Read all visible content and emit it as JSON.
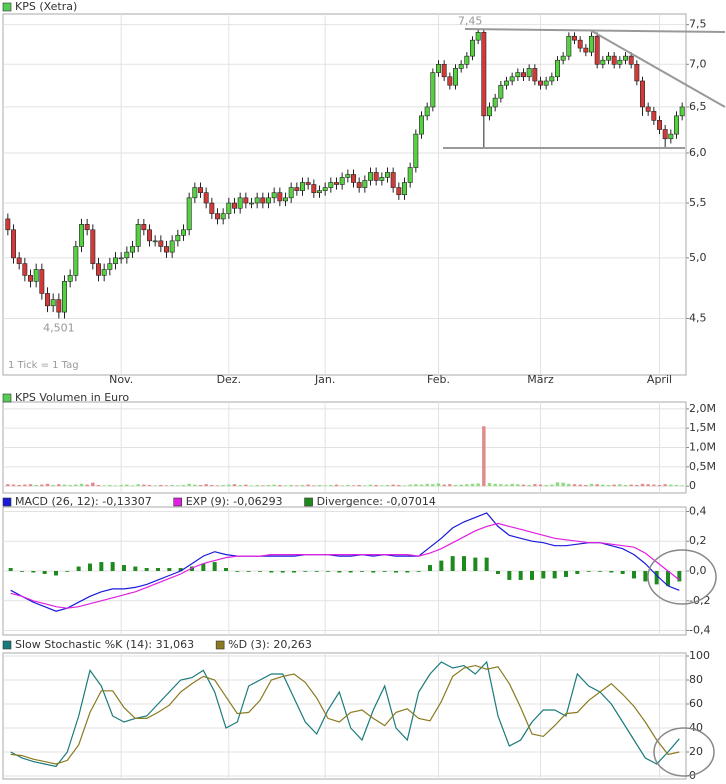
{
  "chart_data": [
    {
      "type": "candlestick",
      "title": "KPS (Xetra)",
      "log": true,
      "grid": true,
      "up_color": "#55d040",
      "down_color": "#d23a3a",
      "ylim": [
        4.1,
        7.6
      ],
      "yticks": [
        {
          "value": 7.5,
          "label": "7,5"
        },
        {
          "value": 7.0,
          "label": "7,0"
        },
        {
          "value": 6.5,
          "label": "6,5"
        },
        {
          "value": 6.0,
          "label": "6,0"
        },
        {
          "value": 5.5,
          "label": "5,5"
        },
        {
          "value": 5.0,
          "label": "5,0"
        },
        {
          "value": 4.5,
          "label": "4,5"
        }
      ],
      "xticks": [
        {
          "value": 20,
          "label": "Nov."
        },
        {
          "value": 39,
          "label": "Dez."
        },
        {
          "value": 56,
          "label": "Jan."
        },
        {
          "value": 76,
          "label": "Feb."
        },
        {
          "value": 94,
          "label": "März"
        },
        {
          "value": 115,
          "label": "April"
        }
      ],
      "annotations": {
        "high": "7,45",
        "low": "4,501",
        "note": "1 Tick = 1 Tag"
      },
      "open": [
        5.35,
        5.25,
        5.0,
        4.95,
        4.85,
        4.8,
        4.9,
        4.7,
        4.6,
        4.65,
        4.55,
        4.8,
        4.85,
        5.1,
        5.3,
        5.25,
        4.95,
        4.85,
        4.9,
        4.95,
        5.0,
        5.0,
        5.05,
        5.1,
        5.3,
        5.25,
        5.15,
        5.15,
        5.1,
        5.05,
        5.15,
        5.2,
        5.25,
        5.55,
        5.65,
        5.6,
        5.5,
        5.4,
        5.35,
        5.4,
        5.5,
        5.45,
        5.55,
        5.5,
        5.5,
        5.55,
        5.5,
        5.55,
        5.6,
        5.52,
        5.55,
        5.65,
        5.62,
        5.7,
        5.68,
        5.6,
        5.62,
        5.65,
        5.7,
        5.68,
        5.75,
        5.78,
        5.7,
        5.65,
        5.72,
        5.8,
        5.72,
        5.75,
        5.8,
        5.65,
        5.58,
        5.7,
        5.85,
        6.2,
        6.4,
        6.5,
        6.9,
        7.0,
        6.85,
        6.75,
        6.95,
        7.0,
        7.1,
        7.3,
        7.4,
        6.4,
        6.5,
        6.6,
        6.75,
        6.8,
        6.85,
        6.9,
        6.85,
        6.95,
        6.8,
        6.75,
        6.8,
        6.85,
        7.05,
        7.1,
        7.35,
        7.3,
        7.2,
        7.15,
        7.35,
        7.0,
        7.05,
        7.1,
        7.0,
        7.05,
        7.1,
        7.0,
        6.8,
        6.5,
        6.45,
        6.35,
        6.25,
        6.15,
        6.2,
        6.4
      ],
      "high": [
        5.4,
        5.3,
        5.05,
        5.0,
        4.9,
        4.95,
        4.95,
        4.75,
        4.7,
        4.7,
        4.85,
        4.9,
        5.15,
        5.35,
        5.35,
        5.3,
        5.0,
        4.95,
        5.0,
        5.05,
        5.05,
        5.1,
        5.15,
        5.35,
        5.35,
        5.3,
        5.2,
        5.2,
        5.15,
        5.2,
        5.25,
        5.3,
        5.6,
        5.7,
        5.7,
        5.65,
        5.55,
        5.45,
        5.45,
        5.55,
        5.55,
        5.6,
        5.6,
        5.55,
        5.6,
        5.6,
        5.6,
        5.65,
        5.65,
        5.6,
        5.7,
        5.7,
        5.75,
        5.75,
        5.73,
        5.67,
        5.7,
        5.75,
        5.75,
        5.8,
        5.83,
        5.83,
        5.75,
        5.77,
        5.85,
        5.85,
        5.8,
        5.85,
        5.85,
        5.7,
        5.75,
        5.9,
        6.25,
        6.45,
        6.55,
        6.95,
        7.05,
        7.05,
        6.9,
        7.0,
        7.05,
        7.15,
        7.35,
        7.45,
        7.45,
        6.55,
        6.65,
        6.8,
        6.85,
        6.9,
        6.95,
        6.95,
        7.0,
        7.0,
        6.85,
        6.85,
        6.9,
        7.1,
        7.15,
        7.4,
        7.4,
        7.35,
        7.25,
        7.4,
        7.4,
        7.1,
        7.15,
        7.15,
        7.1,
        7.15,
        7.15,
        7.05,
        6.85,
        6.55,
        6.5,
        6.4,
        6.3,
        6.25,
        6.45,
        6.55
      ],
      "low": [
        5.2,
        4.95,
        4.9,
        4.8,
        4.75,
        4.75,
        4.65,
        4.55,
        4.55,
        4.5,
        4.5,
        4.75,
        4.8,
        5.05,
        5.2,
        4.9,
        4.8,
        4.8,
        4.85,
        4.9,
        4.95,
        4.95,
        5.0,
        5.05,
        5.2,
        5.1,
        5.1,
        5.05,
        5.0,
        5.0,
        5.1,
        5.15,
        5.2,
        5.5,
        5.55,
        5.45,
        5.35,
        5.3,
        5.3,
        5.35,
        5.4,
        5.4,
        5.45,
        5.45,
        5.45,
        5.45,
        5.45,
        5.5,
        5.47,
        5.47,
        5.5,
        5.57,
        5.57,
        5.63,
        5.55,
        5.55,
        5.57,
        5.6,
        5.63,
        5.63,
        5.7,
        5.65,
        5.6,
        5.6,
        5.67,
        5.67,
        5.67,
        5.7,
        5.6,
        5.53,
        5.53,
        5.65,
        5.8,
        6.15,
        6.35,
        6.45,
        6.85,
        6.8,
        6.7,
        6.7,
        6.9,
        6.95,
        7.05,
        7.25,
        6.05,
        6.35,
        6.45,
        6.55,
        6.7,
        6.75,
        6.8,
        6.8,
        6.8,
        6.75,
        6.7,
        6.7,
        6.75,
        6.8,
        7.0,
        7.05,
        7.25,
        7.15,
        7.1,
        7.1,
        6.95,
        6.95,
        7.0,
        6.95,
        6.95,
        7.0,
        6.95,
        6.75,
        6.4,
        6.4,
        6.3,
        6.2,
        6.05,
        6.1,
        6.15,
        6.35
      ],
      "close": [
        5.25,
        5.0,
        4.95,
        4.85,
        4.8,
        4.9,
        4.7,
        4.6,
        4.65,
        4.55,
        4.8,
        4.85,
        5.1,
        5.3,
        5.25,
        4.95,
        4.85,
        4.9,
        4.95,
        5.0,
        5.0,
        5.05,
        5.1,
        5.3,
        5.25,
        5.15,
        5.15,
        5.1,
        5.05,
        5.15,
        5.2,
        5.25,
        5.55,
        5.65,
        5.6,
        5.5,
        5.4,
        5.35,
        5.4,
        5.5,
        5.45,
        5.55,
        5.5,
        5.5,
        5.55,
        5.5,
        5.55,
        5.6,
        5.52,
        5.55,
        5.65,
        5.62,
        5.7,
        5.68,
        5.6,
        5.62,
        5.65,
        5.7,
        5.68,
        5.75,
        5.78,
        5.7,
        5.65,
        5.72,
        5.8,
        5.72,
        5.75,
        5.8,
        5.65,
        5.58,
        5.7,
        5.85,
        6.2,
        6.4,
        6.5,
        6.9,
        7.0,
        6.85,
        6.75,
        6.95,
        7.0,
        7.1,
        7.3,
        7.4,
        6.4,
        6.5,
        6.6,
        6.75,
        6.8,
        6.85,
        6.9,
        6.85,
        6.95,
        6.8,
        6.75,
        6.8,
        6.85,
        7.05,
        7.1,
        7.35,
        7.3,
        7.2,
        7.15,
        7.35,
        7.0,
        7.05,
        7.1,
        7.0,
        7.05,
        7.1,
        7.0,
        6.8,
        6.5,
        6.45,
        6.35,
        6.25,
        6.15,
        6.2,
        6.4,
        6.5
      ]
    },
    {
      "type": "bar",
      "title": "KPS Volumen in Euro",
      "grid": true,
      "up_color": "#8fdc80",
      "down_color": "#e08a8a",
      "ylim": [
        -0.1,
        2.1
      ],
      "yticks": [
        0,
        {
          "value": 0.5,
          "label": "0,5M"
        },
        {
          "value": 1.0,
          "label": "1,0M"
        },
        {
          "value": 1.5,
          "label": "1,5M"
        },
        {
          "value": 2.0,
          "label": "2,0M"
        }
      ],
      "values": [
        0.05,
        0.04,
        0.03,
        0.04,
        0.05,
        0.03,
        0.04,
        0.06,
        0.03,
        0.05,
        0.04,
        0.03,
        0.04,
        0.06,
        0.04,
        0.09,
        0.03,
        0.02,
        0.03,
        0.02,
        0.03,
        0.04,
        0.02,
        0.05,
        0.04,
        0.03,
        0.02,
        0.03,
        0.02,
        0.03,
        0.02,
        0.03,
        0.06,
        0.04,
        0.03,
        0.05,
        0.03,
        0.02,
        0.03,
        0.04,
        0.05,
        0.03,
        0.04,
        0.02,
        0.03,
        0.02,
        0.03,
        0.04,
        0.03,
        0.02,
        0.03,
        0.02,
        0.03,
        0.04,
        0.02,
        0.03,
        0.02,
        0.03,
        0.04,
        0.02,
        0.03,
        0.02,
        0.03,
        0.02,
        0.04,
        0.03,
        0.02,
        0.03,
        0.04,
        0.03,
        0.02,
        0.04,
        0.05,
        0.04,
        0.06,
        0.05,
        0.07,
        0.04,
        0.05,
        0.03,
        0.04,
        0.05,
        0.06,
        0.07,
        1.55,
        0.08,
        0.06,
        0.05,
        0.04,
        0.06,
        0.05,
        0.04,
        0.03,
        0.05,
        0.04,
        0.03,
        0.04,
        0.1,
        0.09,
        0.06,
        0.05,
        0.04,
        0.03,
        0.06,
        0.05,
        0.04,
        0.03,
        0.04,
        0.05,
        0.03,
        0.04,
        0.03,
        0.06,
        0.05,
        0.04,
        0.03,
        0.05,
        0.04,
        0.03,
        0.02
      ]
    },
    {
      "type": "line",
      "grid": true,
      "ylim": [
        -0.41,
        0.41
      ],
      "yticks": [
        {
          "value": 0.4,
          "label": "0,4"
        },
        {
          "value": 0.2,
          "label": "0,2"
        },
        {
          "value": 0.0,
          "label": "0,0"
        },
        {
          "value": -0.2,
          "label": "-0,2"
        },
        {
          "value": -0.4,
          "label": "-0,4"
        }
      ],
      "series": [
        {
          "name": "MACD (26, 12): -0,13307",
          "color": "#1a1adc",
          "values": [
            -0.13,
            -0.17,
            -0.21,
            -0.24,
            -0.27,
            -0.25,
            -0.21,
            -0.17,
            -0.14,
            -0.12,
            -0.12,
            -0.11,
            -0.09,
            -0.06,
            -0.03,
            0.0,
            0.05,
            0.1,
            0.13,
            0.11,
            0.1,
            0.1,
            0.1,
            0.1,
            0.1,
            0.1,
            0.11,
            0.11,
            0.11,
            0.1,
            0.1,
            0.11,
            0.1,
            0.11,
            0.1,
            0.1,
            0.1,
            0.16,
            0.22,
            0.29,
            0.33,
            0.36,
            0.39,
            0.3,
            0.24,
            0.22,
            0.2,
            0.19,
            0.17,
            0.17,
            0.18,
            0.19,
            0.19,
            0.17,
            0.15,
            0.11,
            0.05,
            -0.03,
            -0.1,
            -0.13
          ]
        },
        {
          "name": "EXP (9): -0,06293",
          "color": "#e020e0",
          "values": [
            -0.15,
            -0.17,
            -0.2,
            -0.22,
            -0.24,
            -0.25,
            -0.24,
            -0.22,
            -0.2,
            -0.18,
            -0.16,
            -0.14,
            -0.11,
            -0.08,
            -0.05,
            -0.02,
            0.02,
            0.05,
            0.07,
            0.09,
            0.1,
            0.1,
            0.1,
            0.11,
            0.11,
            0.11,
            0.11,
            0.11,
            0.11,
            0.11,
            0.11,
            0.11,
            0.11,
            0.11,
            0.11,
            0.11,
            0.1,
            0.12,
            0.15,
            0.19,
            0.23,
            0.27,
            0.3,
            0.32,
            0.3,
            0.28,
            0.26,
            0.24,
            0.22,
            0.21,
            0.2,
            0.19,
            0.19,
            0.18,
            0.17,
            0.16,
            0.12,
            0.06,
            0.0,
            -0.06
          ]
        },
        {
          "name": "Divergence: -0,07014",
          "color": "#1e8a1e",
          "type": "bar",
          "values": [
            0.02,
            0.0,
            -0.01,
            -0.02,
            -0.03,
            0.0,
            0.03,
            0.05,
            0.06,
            0.06,
            0.04,
            0.03,
            0.02,
            0.02,
            0.02,
            0.02,
            0.03,
            0.05,
            0.06,
            0.02,
            0.0,
            0.0,
            0.0,
            -0.01,
            -0.01,
            -0.01,
            0.0,
            0.0,
            0.0,
            -0.01,
            -0.01,
            0.0,
            -0.01,
            0.0,
            -0.01,
            -0.01,
            0.0,
            0.04,
            0.07,
            0.1,
            0.1,
            0.09,
            0.09,
            -0.02,
            -0.06,
            -0.06,
            -0.06,
            -0.05,
            -0.05,
            -0.04,
            -0.02,
            0.0,
            0.0,
            -0.01,
            -0.02,
            -0.05,
            -0.07,
            -0.09,
            -0.1,
            -0.07
          ]
        }
      ]
    },
    {
      "type": "line",
      "grid": true,
      "ylim": [
        0,
        100
      ],
      "yticks": [
        100,
        80,
        60,
        40,
        20,
        0
      ],
      "series": [
        {
          "name": "Slow Stochastic %K (14): 31,063",
          "color": "#1a7a7a",
          "values": [
            20,
            15,
            12,
            10,
            8,
            20,
            50,
            88,
            75,
            50,
            45,
            48,
            50,
            60,
            70,
            80,
            82,
            88,
            70,
            40,
            45,
            75,
            80,
            85,
            85,
            65,
            45,
            35,
            55,
            70,
            40,
            30,
            55,
            75,
            40,
            30,
            70,
            85,
            95,
            90,
            92,
            85,
            95,
            50,
            25,
            30,
            45,
            55,
            55,
            50,
            85,
            75,
            70,
            60,
            45,
            30,
            15,
            10,
            20,
            31
          ]
        },
        {
          "name": "%D (3): 20,263",
          "color": "#8a7a20",
          "values": [
            18,
            17,
            14,
            12,
            10,
            13,
            26,
            53,
            71,
            71,
            57,
            48,
            48,
            53,
            59,
            70,
            77,
            83,
            80,
            66,
            52,
            53,
            63,
            80,
            83,
            85,
            78,
            65,
            48,
            45,
            53,
            55,
            48,
            42,
            53,
            56,
            48,
            46,
            62,
            83,
            90,
            92,
            89,
            91,
            77,
            57,
            35,
            33,
            42,
            52,
            53,
            63,
            70,
            77,
            68,
            58,
            45,
            30,
            18,
            20
          ]
        }
      ]
    }
  ]
}
